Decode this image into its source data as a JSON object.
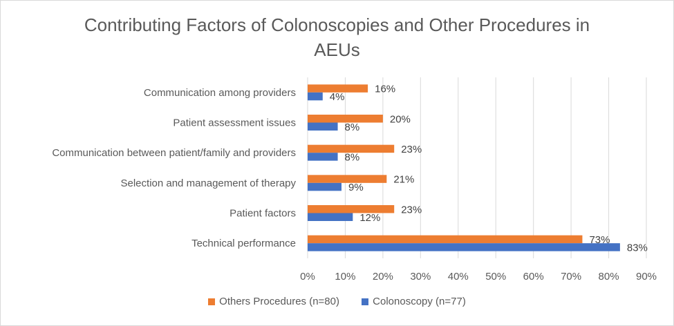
{
  "chart_data": {
    "type": "bar",
    "orientation": "horizontal",
    "title": "Contributing Factors of Colonoscopies and Other Procedures in AEUs",
    "title_lines": [
      "Contributing Factors of Colonoscopies and Other Procedures in",
      "AEUs"
    ],
    "categories": [
      "Communication among providers",
      "Patient assessment issues",
      "Communication between patient/family and providers",
      "Selection and management of therapy",
      "Patient factors",
      "Technical performance"
    ],
    "series": [
      {
        "name": "Others Procedures (n=80)",
        "color": "#ed7d31",
        "values": [
          16,
          20,
          23,
          21,
          23,
          73
        ],
        "labels": [
          "16%",
          "20%",
          "23%",
          "21%",
          "23%",
          "73%"
        ]
      },
      {
        "name": "Colonoscopy (n=77)",
        "color": "#4472c4",
        "values": [
          4,
          8,
          8,
          9,
          12,
          83
        ],
        "labels": [
          "4%",
          "8%",
          "8%",
          "9%",
          "12%",
          "83%"
        ]
      }
    ],
    "xlim": [
      0,
      90
    ],
    "xticks": [
      "0%",
      "10%",
      "20%",
      "30%",
      "40%",
      "50%",
      "60%",
      "70%",
      "80%",
      "90%"
    ],
    "grid": "vertical",
    "legend_position": "bottom"
  }
}
